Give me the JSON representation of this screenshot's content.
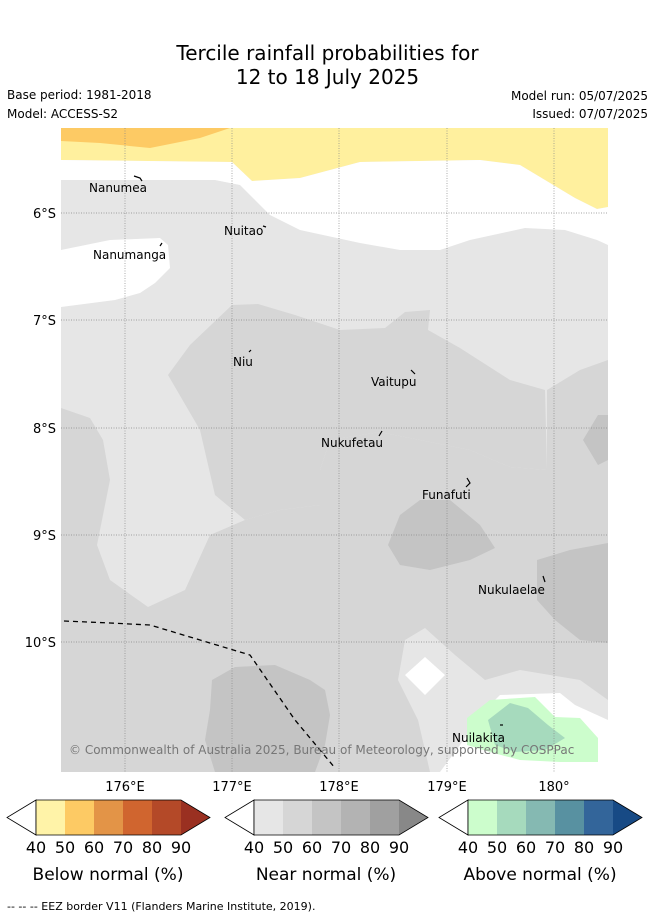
{
  "title_line1": "Tercile rainfall probabilities for",
  "title_line2": "12 to 18 July 2025",
  "base_period": "Base period: 1981-2018",
  "model": "Model: ACCESS-S2",
  "model_run": "Model run: 05/07/2025",
  "issued": "Issued: 07/07/2025",
  "copyright": "© Commonwealth of Australia 2025, Bureau of Meteorology, supported by COSPPac",
  "footer": "--  --  -- EEZ border V11 (Flanders Marine Institute, 2019).",
  "axis": {
    "lat_labels": [
      "6°S",
      "7°S",
      "8°S",
      "9°S",
      "10°S"
    ],
    "lon_labels": [
      "176°E",
      "177°E",
      "178°E",
      "179°E",
      "180°"
    ]
  },
  "places": [
    {
      "name": "Nanumea"
    },
    {
      "name": "Nuitao"
    },
    {
      "name": "Nanumanga"
    },
    {
      "name": "Niu"
    },
    {
      "name": "Vaitupu"
    },
    {
      "name": "Nukufetau"
    },
    {
      "name": "Funafuti"
    },
    {
      "name": "Nukulaelae"
    },
    {
      "name": "Nuilakita"
    }
  ],
  "legends": [
    {
      "caption": "Below normal (%)",
      "ticks": [
        "40",
        "50",
        "60",
        "70",
        "80",
        "90"
      ],
      "colors": [
        "#fff3a8",
        "#fdca64",
        "#e39447",
        "#d0652f",
        "#b44928",
        "#9a3021"
      ]
    },
    {
      "caption": "Near normal (%)",
      "ticks": [
        "40",
        "50",
        "60",
        "70",
        "80",
        "90"
      ],
      "colors": [
        "#e6e6e6",
        "#d6d6d6",
        "#c4c4c4",
        "#b3b3b3",
        "#a0a0a0",
        "#888888"
      ]
    },
    {
      "caption": "Above normal (%)",
      "ticks": [
        "40",
        "50",
        "60",
        "70",
        "80",
        "90"
      ],
      "colors": [
        "#ccfdcc",
        "#a6dabd",
        "#85b9b2",
        "#5891a1",
        "#33659a",
        "#174a85"
      ]
    }
  ]
}
